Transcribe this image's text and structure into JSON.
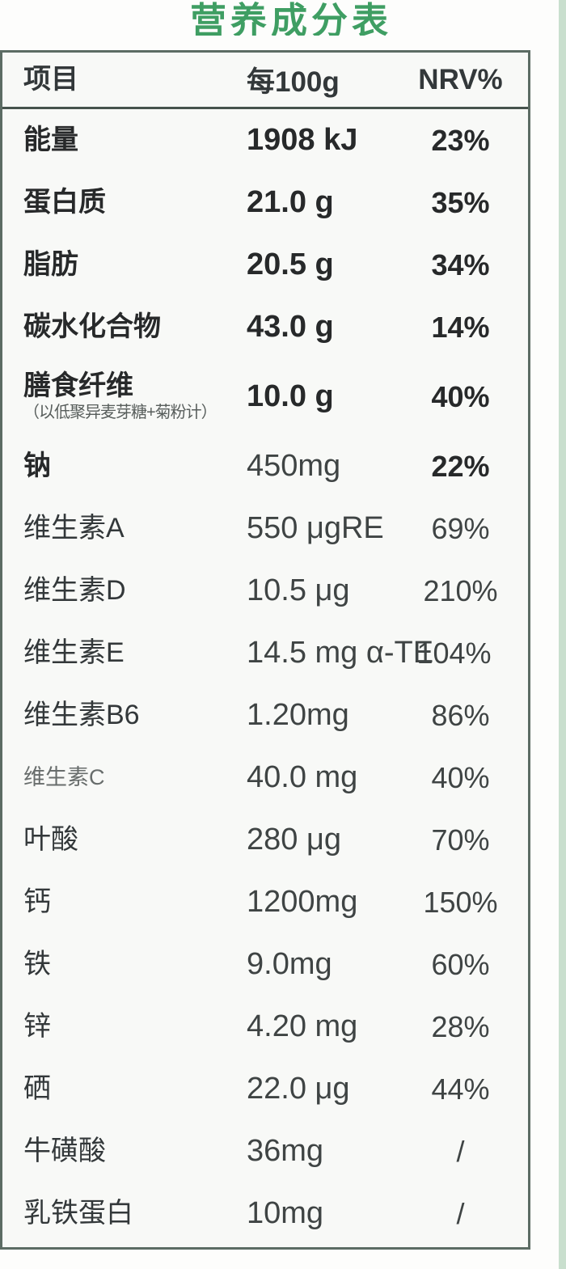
{
  "title": "营养成分表",
  "colors": {
    "title_green": "#3f9e63",
    "table_border": "#5c6c64",
    "header_divider": "#46534d",
    "right_strip_green": "#c9dfce",
    "table_background": "#f8f9f7"
  },
  "table": {
    "headers": {
      "item": "项目",
      "per_100g": "每100g",
      "nrv": "NRV%"
    },
    "rows": [
      {
        "label": "能量",
        "value": "1908 kJ",
        "nrv": "23%",
        "emphasis": "heavy"
      },
      {
        "label": "蛋白质",
        "value": "21.0 g",
        "nrv": "35%",
        "emphasis": "heavy"
      },
      {
        "label": "脂肪",
        "value": "20.5 g",
        "nrv": "34%",
        "emphasis": "heavy"
      },
      {
        "label": "碳水化合物",
        "value": "43.0 g",
        "nrv": "14%",
        "emphasis": "heavy"
      },
      {
        "label": "膳食纤维",
        "sublabel": "（以低聚异麦芽糖+菊粉计）",
        "value": "10.0 g",
        "nrv": "40%",
        "emphasis": "heavy"
      },
      {
        "label": "钠",
        "value": "450mg",
        "nrv": "22%",
        "emphasis": "heavy",
        "value_regular": true
      },
      {
        "label": "维生素A",
        "value": "550 μgRE",
        "nrv": "69%",
        "emphasis": "normal"
      },
      {
        "label": "维生素D",
        "value": "10.5 μg",
        "nrv": "210%",
        "emphasis": "normal"
      },
      {
        "label": "维生素E",
        "value": "14.5 mg α-TE",
        "nrv": "104%",
        "emphasis": "normal",
        "nrv_shift": true
      },
      {
        "label": "维生素B6",
        "value": "1.20mg",
        "nrv": "86%",
        "emphasis": "normal"
      },
      {
        "label": "维生素C",
        "value": "40.0 mg",
        "nrv": "40%",
        "emphasis": "normal",
        "small_label": true
      },
      {
        "label": "叶酸",
        "value": "280 μg",
        "nrv": "70%",
        "emphasis": "normal"
      },
      {
        "label": "钙",
        "value": "1200mg",
        "nrv": "150%",
        "emphasis": "normal"
      },
      {
        "label": "铁",
        "value": "9.0mg",
        "nrv": "60%",
        "emphasis": "normal"
      },
      {
        "label": "锌",
        "value": "4.20 mg",
        "nrv": "28%",
        "emphasis": "normal"
      },
      {
        "label": "硒",
        "value": "22.0 μg",
        "nrv": "44%",
        "emphasis": "normal"
      },
      {
        "label": "牛磺酸",
        "value": "36mg",
        "nrv": "/",
        "emphasis": "normal"
      },
      {
        "label": "乳铁蛋白",
        "value": "10mg",
        "nrv": "/",
        "emphasis": "normal"
      }
    ]
  }
}
